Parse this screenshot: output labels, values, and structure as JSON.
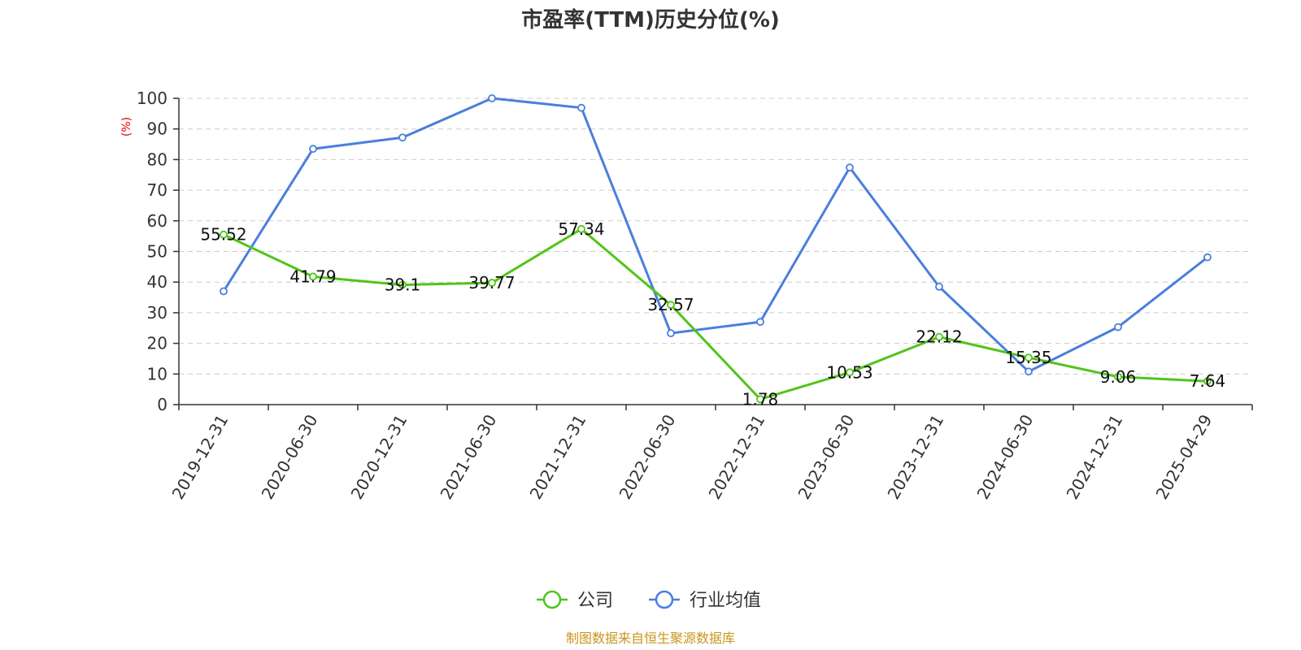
{
  "chart_data": {
    "type": "line",
    "title": "市盈率(TTM)历史分位(%)",
    "ylabel": "(%)",
    "xlabel": "",
    "ylim": [
      0,
      100
    ],
    "yticks": [
      0,
      10,
      20,
      30,
      40,
      50,
      60,
      70,
      80,
      90,
      100
    ],
    "grid": true,
    "legend_position": "bottom-center",
    "categories": [
      "2019-12-31",
      "2020-06-30",
      "2020-12-31",
      "2021-06-30",
      "2021-12-31",
      "2022-06-30",
      "2022-12-31",
      "2023-06-30",
      "2023-12-31",
      "2024-06-30",
      "2024-12-31",
      "2025-04-29"
    ],
    "series": [
      {
        "name": "公司",
        "color": "#52c41a",
        "values": [
          55.52,
          41.79,
          39.1,
          39.77,
          57.34,
          32.57,
          1.78,
          10.53,
          22.12,
          15.35,
          9.06,
          7.64
        ],
        "labels": [
          "55.52",
          "41.79",
          "39.1",
          "39.77",
          "57.34",
          "32.57",
          "1.78",
          "10.53",
          "22.12",
          "15.35",
          "9.06",
          "7.64"
        ]
      },
      {
        "name": "行业均值",
        "color": "#4a7fdc",
        "values": [
          37,
          83.5,
          87.2,
          100,
          96.9,
          23.3,
          27,
          77.4,
          38.5,
          10.8,
          25.3,
          48.1
        ]
      }
    ]
  },
  "source": "制图数据来自恒生聚源数据库"
}
